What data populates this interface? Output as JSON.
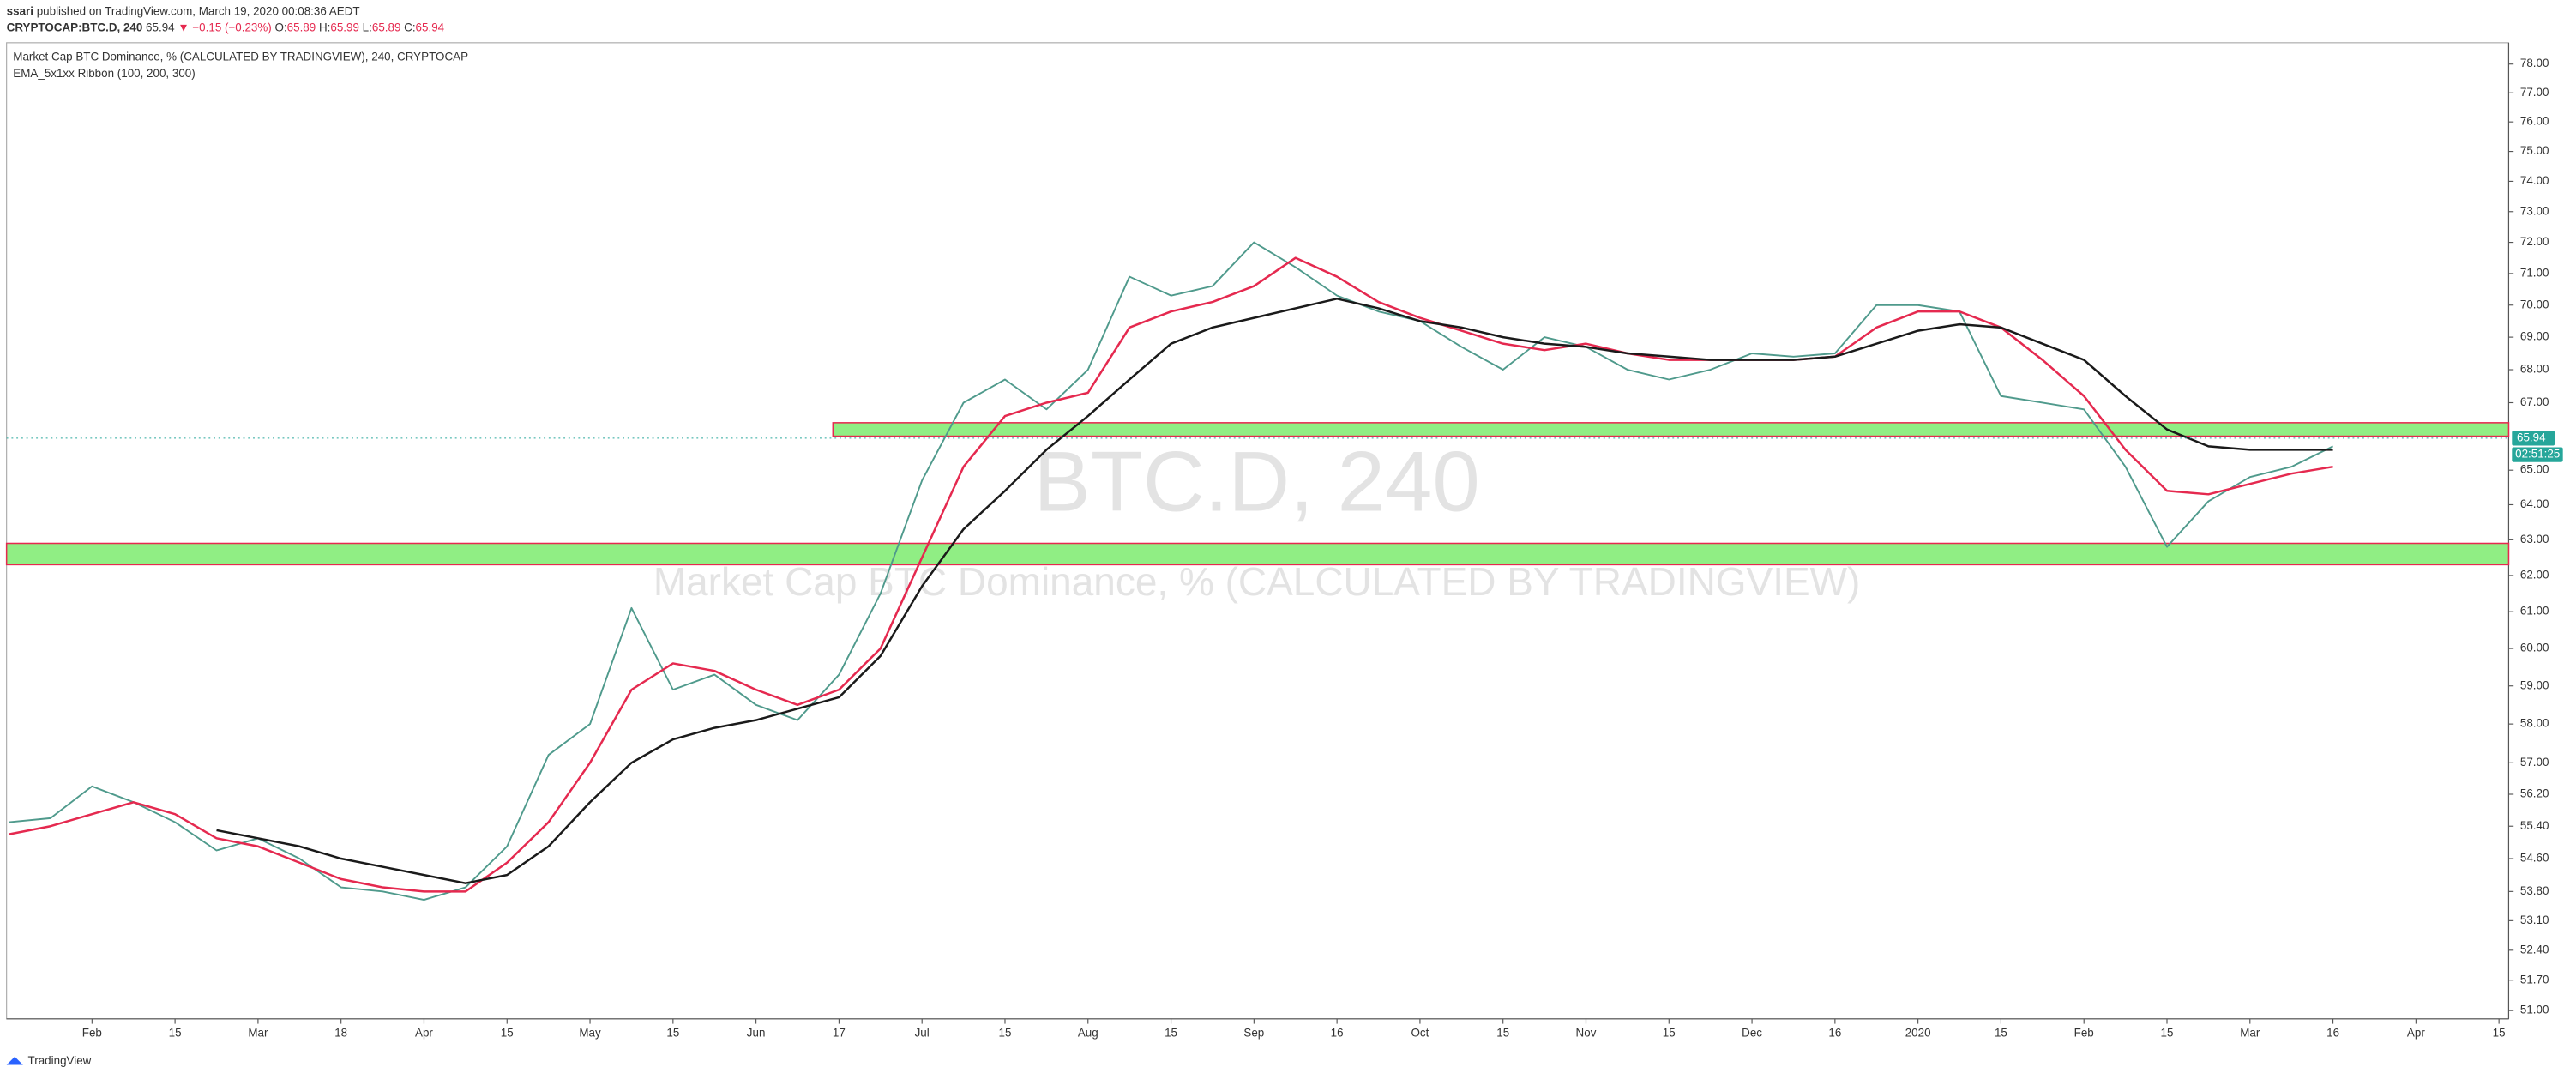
{
  "header": {
    "author": "ssari",
    "published": "published on TradingView.com, March 19, 2020 00:08:36 AEDT",
    "symbol": "CRYPTOCAP:BTC.D, 240",
    "price": "65.94",
    "change": "▼ −0.15 (−0.23%)",
    "ohlc": [
      [
        "O:",
        "65.89"
      ],
      [
        "H:",
        "65.99"
      ],
      [
        "L:",
        "65.89"
      ],
      [
        "C:",
        "65.94"
      ]
    ]
  },
  "chart_data": {
    "type": "line",
    "title": "Market Cap BTC Dominance, % (CALCULATED BY TRADINGVIEW), 240, CRYPTOCAP",
    "indicator": "EMA_5x1xx Ribbon (100, 200, 300)",
    "watermark": [
      "BTC.D, 240",
      "Market Cap BTC Dominance, % (CALCULATED BY TRADINGVIEW)"
    ],
    "categories": [
      null,
      null,
      "Feb",
      null,
      "15",
      null,
      "Mar",
      null,
      "18",
      null,
      "Apr",
      null,
      "15",
      null,
      "May",
      null,
      "15",
      null,
      "Jun",
      null,
      "17",
      null,
      "Jul",
      null,
      "15",
      null,
      "Aug",
      null,
      "15",
      null,
      "Sep",
      null,
      "16",
      null,
      "Oct",
      null,
      "15",
      null,
      "Nov",
      null,
      "15",
      null,
      "Dec",
      null,
      "16",
      null,
      "2020",
      null,
      "15",
      null,
      "Feb",
      null,
      "15",
      null,
      "Mar",
      null,
      "16",
      null,
      "Apr",
      null,
      "15"
    ],
    "series": [
      {
        "color": "#4f9a8c",
        "values": [
          55.5,
          55.6,
          56.4,
          56.0,
          55.5,
          54.8,
          55.1,
          54.6,
          53.9,
          53.8,
          53.6,
          53.9,
          54.9,
          57.2,
          58.0,
          61.1,
          58.9,
          59.3,
          58.5,
          58.1,
          59.3,
          61.5,
          64.7,
          67.0,
          67.7,
          66.8,
          68.0,
          70.9,
          70.3,
          70.6,
          72.0,
          71.2,
          70.3,
          69.8,
          69.5,
          68.7,
          68.0,
          69.0,
          68.7,
          68.0,
          67.7,
          68.0,
          68.5,
          68.4,
          68.5,
          70.0,
          70.0,
          69.8,
          67.2,
          67.0,
          66.8,
          65.1,
          62.8,
          64.1,
          64.8,
          65.1,
          65.7,
          null,
          null,
          null,
          null
        ]
      },
      {
        "color": "#e5294f",
        "values": [
          55.2,
          55.4,
          55.7,
          56.0,
          55.7,
          55.1,
          54.9,
          54.5,
          54.1,
          53.9,
          53.8,
          53.8,
          54.5,
          55.5,
          57.0,
          58.9,
          59.6,
          59.4,
          58.9,
          58.5,
          58.9,
          60.0,
          62.5,
          65.1,
          66.6,
          67.0,
          67.3,
          69.3,
          69.8,
          70.1,
          70.6,
          71.5,
          70.9,
          70.1,
          69.6,
          69.2,
          68.8,
          68.6,
          68.8,
          68.5,
          68.3,
          68.3,
          68.3,
          68.3,
          68.4,
          69.3,
          69.8,
          69.8,
          69.3,
          68.3,
          67.2,
          65.6,
          64.4,
          64.3,
          64.6,
          64.9,
          65.1,
          null,
          null,
          null,
          null
        ]
      },
      {
        "color": "#1a1a1a",
        "values": [
          null,
          null,
          null,
          null,
          null,
          55.3,
          55.1,
          54.9,
          54.6,
          54.4,
          54.2,
          54.0,
          54.2,
          54.9,
          56.0,
          57.0,
          57.6,
          57.9,
          58.1,
          58.4,
          58.7,
          59.8,
          61.7,
          63.3,
          64.4,
          65.6,
          66.6,
          67.7,
          68.8,
          69.3,
          69.6,
          69.9,
          70.2,
          69.9,
          69.5,
          69.3,
          69.0,
          68.8,
          68.7,
          68.5,
          68.4,
          68.3,
          68.3,
          68.3,
          68.4,
          68.8,
          69.2,
          69.4,
          69.3,
          68.8,
          68.3,
          67.2,
          66.2,
          65.7,
          65.6,
          65.6,
          65.6,
          null,
          null,
          null,
          null
        ]
      }
    ],
    "zones": [
      {
        "low": 66.0,
        "high": 66.4,
        "color": "#90ee84"
      },
      {
        "low": 62.3,
        "high": 62.9,
        "color": "#90ee84"
      }
    ],
    "last_price": 65.94,
    "countdown": "02:51:25",
    "log_scale": true,
    "grid": false,
    "ylim": [
      50.81,
      78.75
    ],
    "yticks": [
      {
        "value": 78,
        "label": "78.00"
      },
      {
        "value": 77,
        "label": "77.00"
      },
      {
        "value": 76,
        "label": "76.00"
      },
      {
        "value": 75,
        "label": "75.00"
      },
      {
        "value": 74,
        "label": "74.00"
      },
      {
        "value": 73,
        "label": "73.00"
      },
      {
        "value": 72,
        "label": "72.00"
      },
      {
        "value": 71,
        "label": "71.00"
      },
      {
        "value": 70,
        "label": "70.00"
      },
      {
        "value": 69,
        "label": "69.00"
      },
      {
        "value": 68,
        "label": "68.00"
      },
      {
        "value": 67,
        "label": "67.00"
      },
      {
        "value": 65,
        "label": "65.00"
      },
      {
        "value": 64,
        "label": "64.00"
      },
      {
        "value": 63,
        "label": "63.00"
      },
      {
        "value": 62,
        "label": "62.00"
      },
      {
        "value": 61,
        "label": "61.00"
      },
      {
        "value": 60,
        "label": "60.00"
      },
      {
        "value": 59,
        "label": "59.00"
      },
      {
        "value": 58,
        "label": "58.00"
      },
      {
        "value": 57,
        "label": "57.00"
      },
      {
        "value": 56.2,
        "label": "56.20"
      },
      {
        "value": 55.4,
        "label": "55.40"
      },
      {
        "value": 54.6,
        "label": "54.60"
      },
      {
        "value": 53.8,
        "label": "53.80"
      },
      {
        "value": 53.1,
        "label": "53.10"
      },
      {
        "value": 52.4,
        "label": "52.40"
      },
      {
        "value": 51.7,
        "label": "51.70"
      },
      {
        "value": 51,
        "label": "51.00"
      }
    ]
  },
  "footer": "TradingView"
}
